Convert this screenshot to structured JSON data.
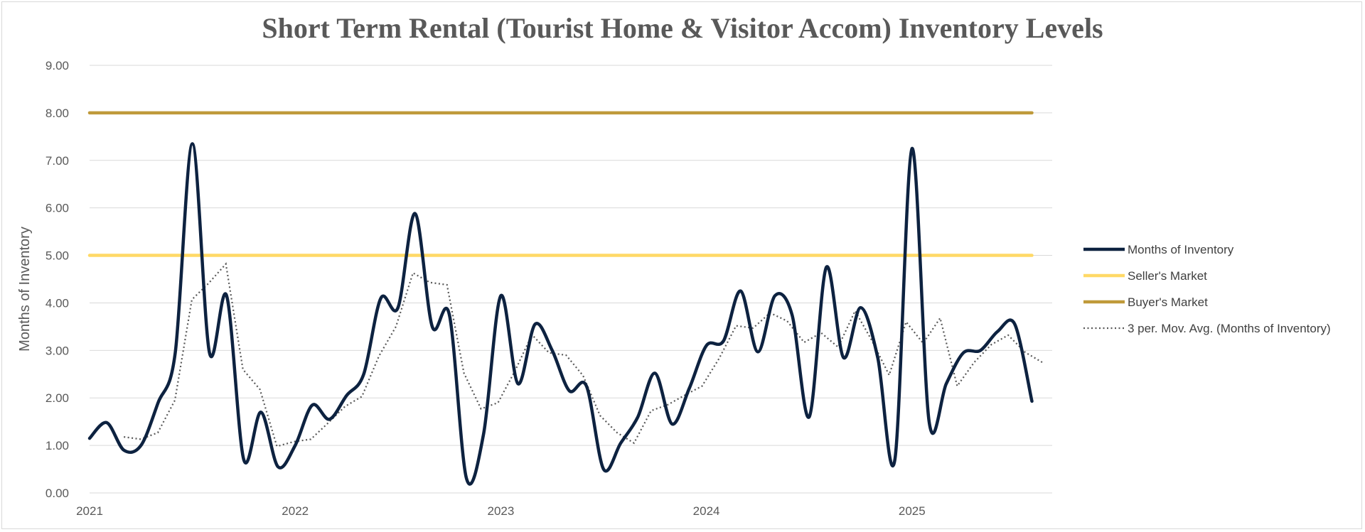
{
  "chart_data": {
    "type": "line",
    "title": "Short Term Rental (Tourist Home & Visitor Accom) Inventory Levels",
    "xlabel": "",
    "ylabel": "Months of Inventory",
    "ylim": [
      0,
      9
    ],
    "yticks": [
      "0.00",
      "1.00",
      "2.00",
      "3.00",
      "4.00",
      "5.00",
      "6.00",
      "7.00",
      "8.00",
      "9.00"
    ],
    "xtick_labels": [
      "2021",
      "2022",
      "2023",
      "2024",
      "2025"
    ],
    "grid": true,
    "legend_position": "right",
    "months": [
      "2021-01",
      "2021-02",
      "2021-03",
      "2021-04",
      "2021-05",
      "2021-06",
      "2021-07",
      "2021-08",
      "2021-09",
      "2021-10",
      "2021-11",
      "2021-12",
      "2022-01",
      "2022-02",
      "2022-03",
      "2022-04",
      "2022-05",
      "2022-06",
      "2022-07",
      "2022-08",
      "2022-09",
      "2022-10",
      "2022-11",
      "2022-12",
      "2023-01",
      "2023-02",
      "2023-03",
      "2023-04",
      "2023-05",
      "2023-06",
      "2023-07",
      "2023-08",
      "2023-09",
      "2023-10",
      "2023-11",
      "2023-12",
      "2024-01",
      "2024-02",
      "2024-03",
      "2024-04",
      "2024-05",
      "2024-06",
      "2024-07",
      "2024-08",
      "2024-09",
      "2024-10",
      "2024-11",
      "2024-12",
      "2025-01",
      "2025-02",
      "2025-03",
      "2025-04",
      "2025-05",
      "2025-06",
      "2025-07",
      "2025-08"
    ],
    "series": [
      {
        "name": "Months of Inventory",
        "color": "#0d2240",
        "style": "solid",
        "values": [
          1.15,
          1.48,
          0.9,
          1.0,
          1.9,
          2.95,
          7.35,
          2.95,
          4.15,
          0.7,
          1.7,
          0.55,
          1.0,
          1.85,
          1.55,
          2.05,
          2.5,
          4.1,
          3.9,
          5.88,
          3.5,
          3.75,
          0.3,
          1.25,
          4.15,
          2.3,
          3.55,
          3.0,
          2.15,
          2.25,
          0.5,
          1.05,
          1.6,
          2.52,
          1.45,
          2.2,
          3.1,
          3.2,
          4.25,
          2.97,
          4.15,
          3.75,
          1.6,
          4.75,
          2.85,
          3.9,
          2.85,
          0.7,
          7.25,
          1.5,
          2.3,
          2.95,
          3.0,
          3.4,
          3.55,
          1.93
        ]
      },
      {
        "name": "Seller's Market",
        "color": "#ffd966",
        "style": "solid",
        "values": [
          5,
          5,
          5,
          5,
          5,
          5,
          5,
          5,
          5,
          5,
          5,
          5,
          5,
          5,
          5,
          5,
          5,
          5,
          5,
          5,
          5,
          5,
          5,
          5,
          5,
          5,
          5,
          5,
          5,
          5,
          5,
          5,
          5,
          5,
          5,
          5,
          5,
          5,
          5,
          5,
          5,
          5,
          5,
          5,
          5,
          5,
          5,
          5,
          5,
          5,
          5,
          5,
          5,
          5,
          5,
          5
        ]
      },
      {
        "name": "Buyer's Market",
        "color": "#bf9a3a",
        "style": "solid",
        "values": [
          8,
          8,
          8,
          8,
          8,
          8,
          8,
          8,
          8,
          8,
          8,
          8,
          8,
          8,
          8,
          8,
          8,
          8,
          8,
          8,
          8,
          8,
          8,
          8,
          8,
          8,
          8,
          8,
          8,
          8,
          8,
          8,
          8,
          8,
          8,
          8,
          8,
          8,
          8,
          8,
          8,
          8,
          8,
          8,
          8,
          8,
          8,
          8,
          8,
          8,
          8,
          8,
          8,
          8,
          8,
          8
        ]
      },
      {
        "name": "3 per. Mov. Avg. (Months of Inventory)",
        "color": "#595959",
        "style": "dotted",
        "start_index": 2,
        "end_index_extra": 0.6,
        "values": [
          1.18,
          1.13,
          1.27,
          1.95,
          4.07,
          4.42,
          4.82,
          2.6,
          2.18,
          0.98,
          1.08,
          1.13,
          1.47,
          1.82,
          2.03,
          2.88,
          3.5,
          4.63,
          4.43,
          4.38,
          2.52,
          1.77,
          1.9,
          2.57,
          3.33,
          2.95,
          2.9,
          2.47,
          1.63,
          1.27,
          1.05,
          1.73,
          1.86,
          2.06,
          2.25,
          2.83,
          3.52,
          3.47,
          3.79,
          3.62,
          3.17,
          3.37,
          3.07,
          3.83,
          3.2,
          2.48,
          3.6,
          3.15,
          3.68,
          2.25,
          2.75,
          3.12,
          3.32,
          2.96,
          2.75
        ]
      }
    ]
  }
}
